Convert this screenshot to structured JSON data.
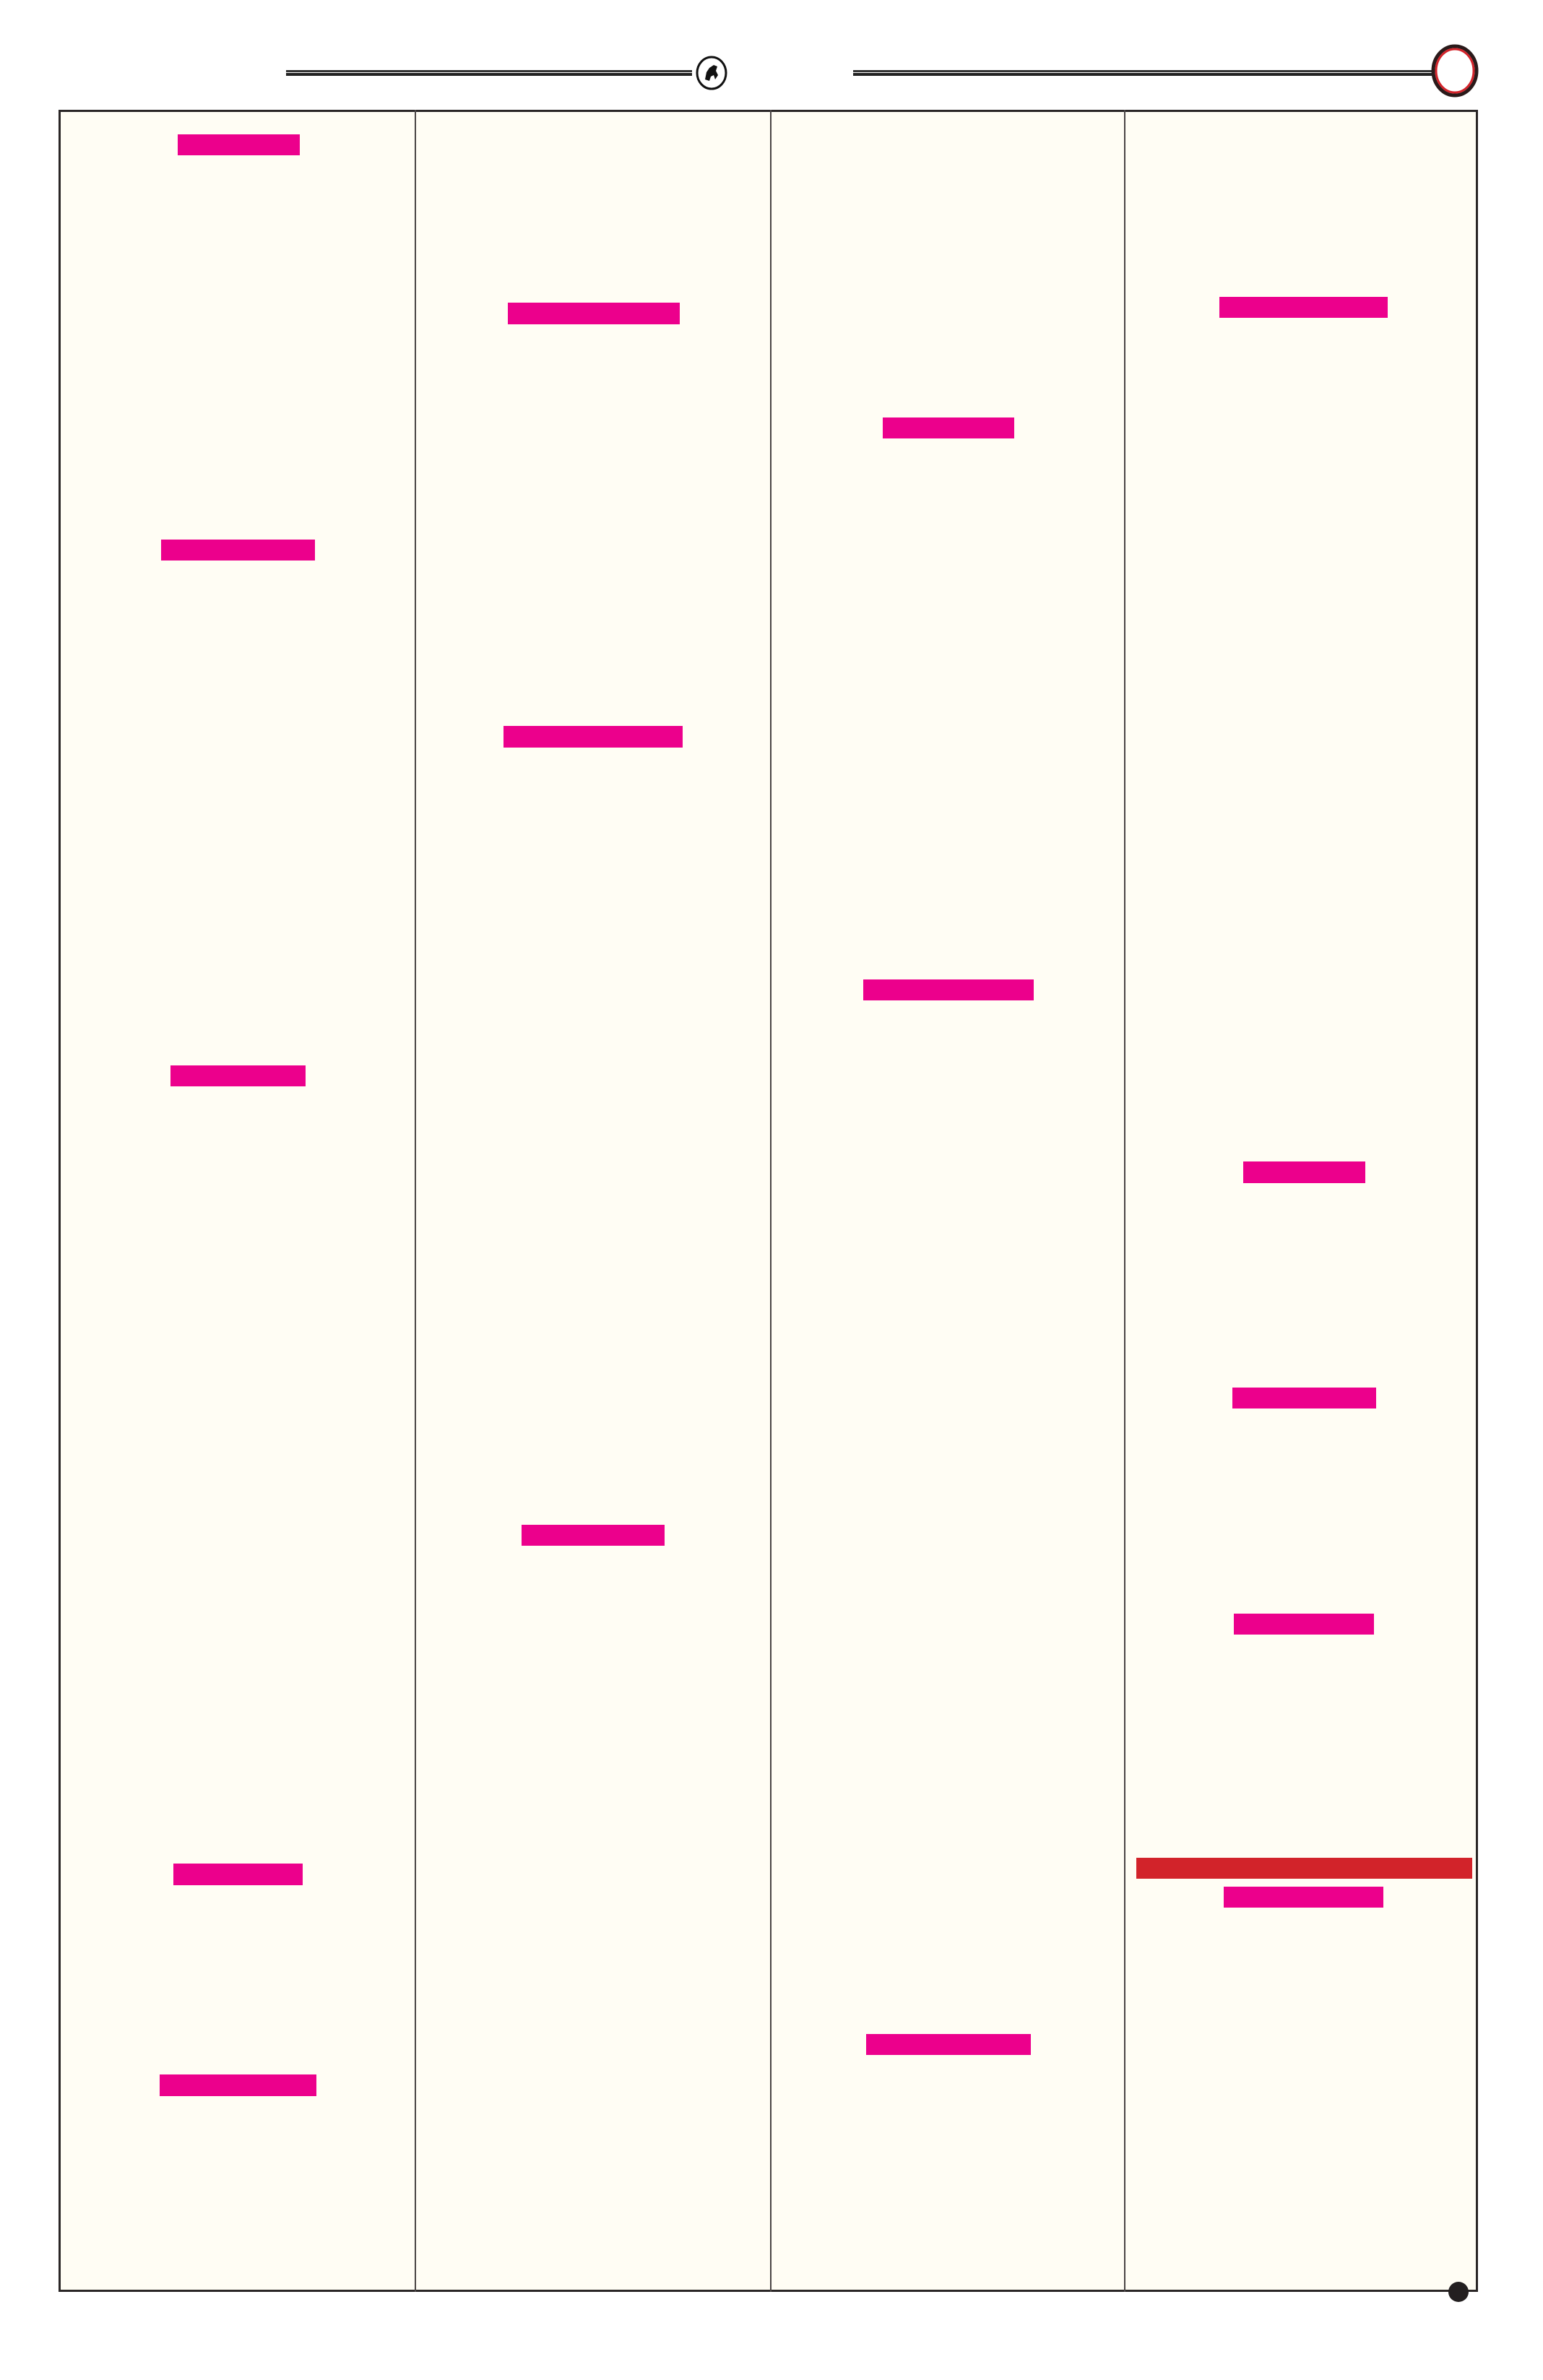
{
  "colors": {
    "page_background": "#ffffff",
    "content_background": "#fffdf4",
    "border": "#2a2626",
    "redaction_magenta": "#ec008c",
    "redaction_red": "#d2232a",
    "header_circle_accent": "#d2232a"
  },
  "header": {
    "emblem_icon": "horse-rider-emblem-icon",
    "corner_icon": "red-ring-icon"
  },
  "layout": {
    "columns": 4
  },
  "footer": {
    "marker_icon": "filled-dot-icon"
  }
}
